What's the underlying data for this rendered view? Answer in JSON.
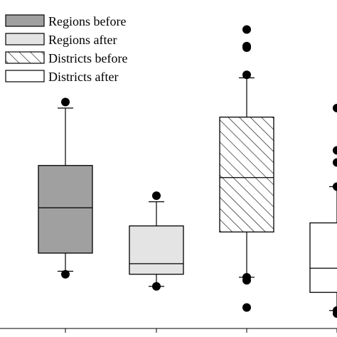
{
  "chart_data": {
    "type": "box",
    "title": "",
    "xlabel": "",
    "ylabel": "",
    "ylim": [
      0,
      100
    ],
    "legend": {
      "placement": "top-left",
      "entries": [
        {
          "label": "Regions before",
          "fill": "#a0a0a0",
          "pattern": "solid"
        },
        {
          "label": "Regions after",
          "fill": "#e4e4e4",
          "pattern": "solid"
        },
        {
          "label": "Districts before",
          "fill": "#ffffff",
          "pattern": "diagonal-hatch"
        },
        {
          "label": "Districts after",
          "fill": "#ffffff",
          "pattern": "solid"
        }
      ]
    },
    "series": [
      {
        "name": "Regions before",
        "whisker_low": 18,
        "q1": 24,
        "median": 39,
        "q3": 53,
        "whisker_high": 72,
        "outliers": [
          17,
          74
        ]
      },
      {
        "name": "Regions after",
        "whisker_low": 13,
        "q1": 17,
        "median": 20.5,
        "q3": 33,
        "whisker_high": 41,
        "outliers": [
          13,
          43
        ]
      },
      {
        "name": "Districts before",
        "whisker_low": 16,
        "q1": 31,
        "median": 49,
        "q3": 69,
        "whisker_high": 82,
        "outliers": [
          6,
          15,
          16,
          83,
          92,
          92.5,
          98
        ]
      },
      {
        "name": "Districts after",
        "whisker_low": 5,
        "q1": 11,
        "median": 19,
        "q3": 34,
        "whisker_high": 46,
        "outliers": [
          4,
          5,
          46,
          54,
          58,
          72
        ]
      }
    ]
  }
}
